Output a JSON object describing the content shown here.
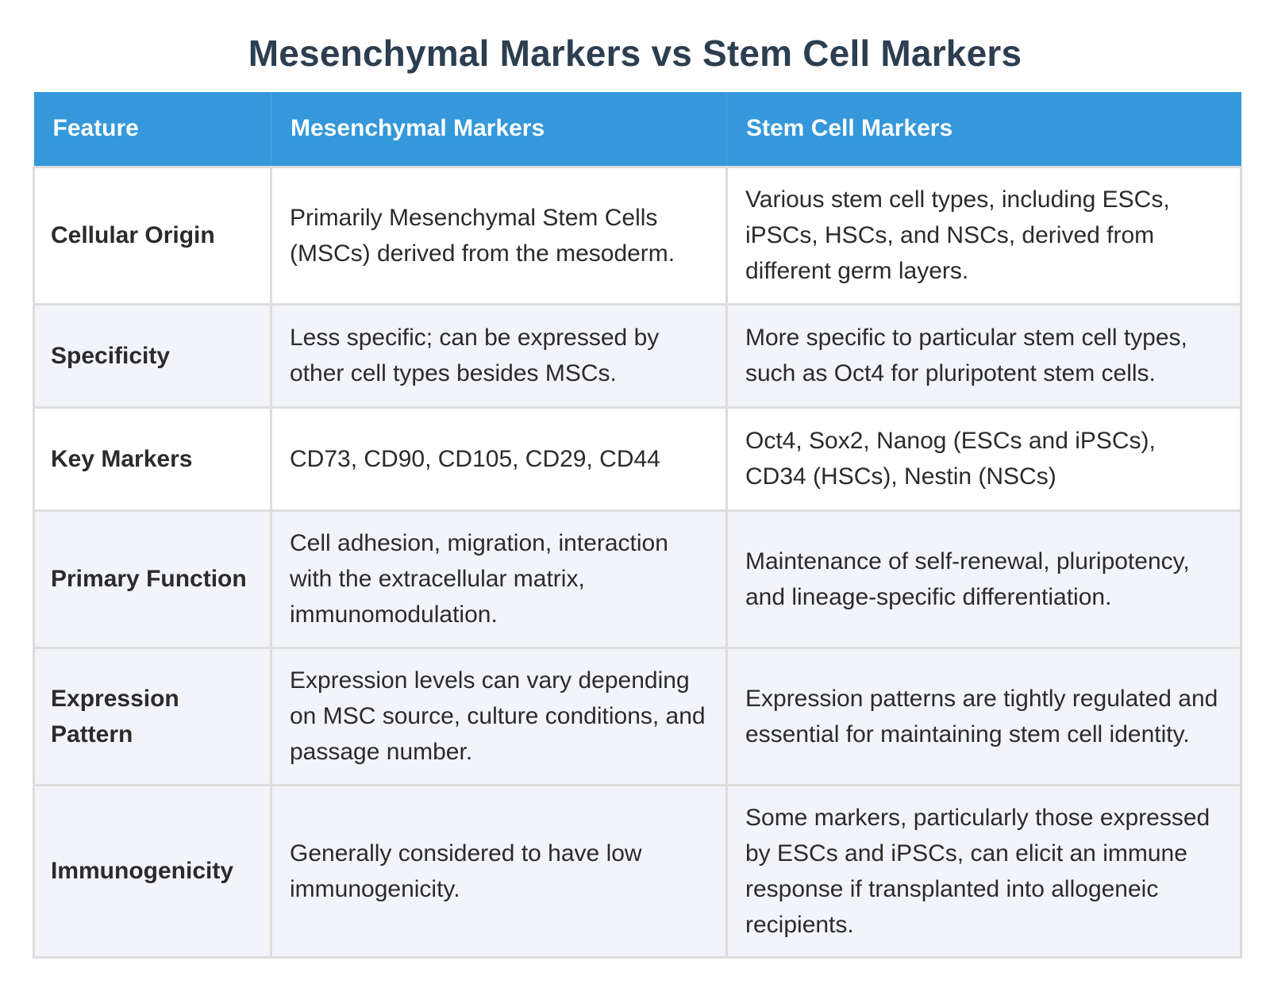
{
  "title": "Mesenchymal Markers vs Stem Cell Markers",
  "table": {
    "headers": [
      "Feature",
      "Mesenchymal Markers",
      "Stem Cell Markers"
    ],
    "rows": [
      {
        "feature": "Cellular Origin",
        "mesenchymal": "Primarily Mesenchymal Stem Cells (MSCs) derived from the mesoderm.",
        "stem": "Various stem cell types, including ESCs, iPSCs, HSCs, and NSCs, derived from different germ layers."
      },
      {
        "feature": "Specificity",
        "mesenchymal": "Less specific; can be expressed by other cell types besides MSCs.",
        "stem": "More specific to particular stem cell types, such as Oct4 for pluripotent stem cells."
      },
      {
        "feature": "Key Markers",
        "mesenchymal": "CD73, CD90, CD105, CD29, CD44",
        "stem": "Oct4, Sox2, Nanog (ESCs and iPSCs), CD34 (HSCs), Nestin (NSCs)"
      },
      {
        "feature": "Primary Function",
        "mesenchymal": "Cell adhesion, migration, interaction with the extracellular matrix, immunomodulation.",
        "stem": "Maintenance of self-renewal, pluripotency, and lineage-specific differentiation."
      },
      {
        "feature": "Expression Pattern",
        "mesenchymal": "Expression levels can vary depending on MSC source, culture conditions, and passage number.",
        "stem": "Expression patterns are tightly regulated and essential for maintaining stem cell identity."
      },
      {
        "feature": "Immunogenicity",
        "mesenchymal": "Generally considered to have low immunogenicity.",
        "stem": "Some markers, particularly those expressed by ESCs and iPSCs, can elicit an immune response if transplanted into allogeneic recipients."
      }
    ]
  },
  "colors": {
    "header_bg": "#3498db",
    "title": "#2c3e50",
    "row_alt_bg": "#f2f4f9"
  }
}
